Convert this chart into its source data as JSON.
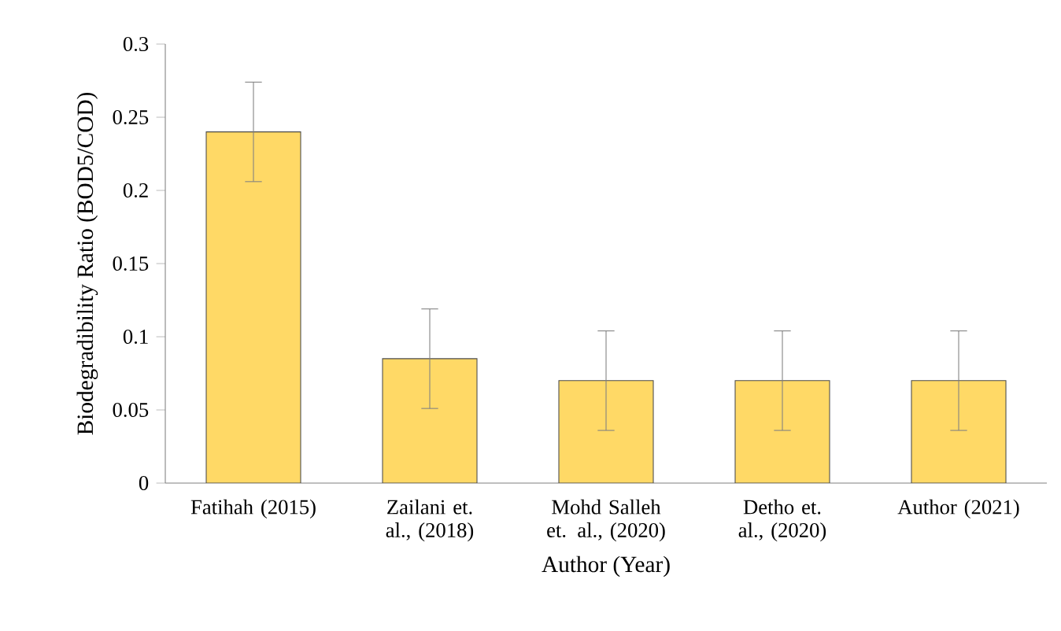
{
  "chart_data": {
    "type": "bar",
    "categories": [
      "Fatihah (2015)",
      "Zailani et. al., (2018)",
      "Mohd Salleh et. al., (2020)",
      "Detho et. al., (2020)",
      "Author (2021)"
    ],
    "values": [
      0.24,
      0.085,
      0.07,
      0.07,
      0.07
    ],
    "errors": [
      0.034,
      0.034,
      0.034,
      0.034,
      0.034
    ],
    "color": "#ffd966",
    "xlabel": "Author (Year)",
    "ylabel": "Biodegradibility Ratio (BOD5/COD)",
    "ylim": [
      0,
      0.3
    ],
    "yticks": [
      0,
      0.05,
      0.1,
      0.15,
      0.2,
      0.25,
      0.3
    ]
  }
}
